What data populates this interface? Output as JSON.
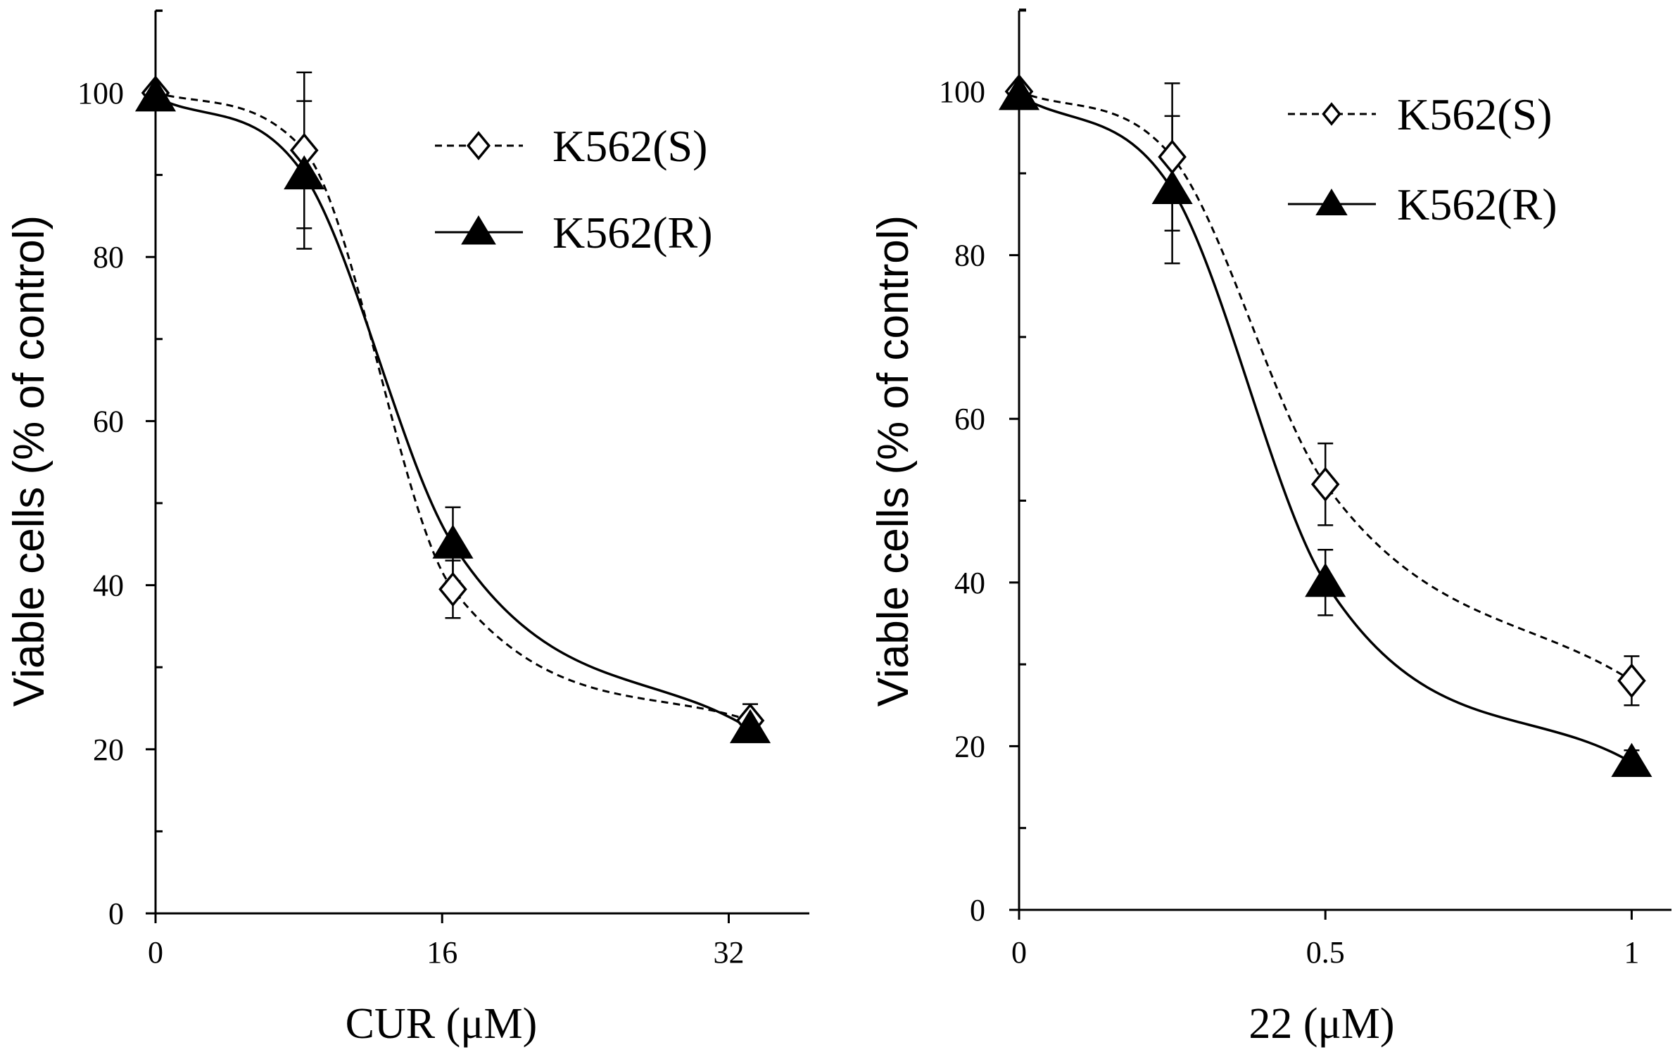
{
  "chart_data": [
    {
      "type": "line",
      "xlabel": "CUR (μM)",
      "ylabel": "Viable cells (% of control)",
      "xlim": [
        0,
        36.5
      ],
      "ylim": [
        0,
        110
      ],
      "xticks": [
        0,
        16,
        32
      ],
      "xtick_labels": [
        "0",
        "16",
        "32"
      ],
      "yticks": [
        0,
        20,
        40,
        60,
        80,
        100
      ],
      "ytick_labels": [
        "0",
        "20",
        "40",
        "60",
        "80",
        "100"
      ],
      "legend": [
        "K562(S)",
        "K562(R)"
      ],
      "legend_position": "top-right",
      "series": [
        {
          "name": "K562(S)",
          "marker": "open-diamond",
          "line": "dashed",
          "x": [
            0,
            8.3,
            16.6,
            33.2
          ],
          "y": [
            100,
            93,
            39.5,
            23.5
          ],
          "error": [
            0,
            9.5,
            3.5,
            2
          ]
        },
        {
          "name": "K562(R)",
          "marker": "filled-triangle",
          "line": "solid",
          "x": [
            0,
            8.3,
            16.6,
            33.2
          ],
          "y": [
            99.5,
            90,
            45,
            22.5
          ],
          "error": [
            0,
            9,
            4.5,
            1.5
          ]
        }
      ]
    },
    {
      "type": "line",
      "xlabel": "22 (μM)",
      "ylabel": "Viable cells  (% of control)",
      "xlim": [
        0,
        1.065
      ],
      "ylim": [
        0,
        110
      ],
      "xticks": [
        0,
        0.5,
        1
      ],
      "xtick_labels": [
        "0",
        "0.5",
        "1"
      ],
      "yticks": [
        0,
        20,
        40,
        60,
        80,
        100
      ],
      "ytick_labels": [
        "0",
        "20",
        "40",
        "60",
        "80",
        "100"
      ],
      "legend": [
        "K562(S)",
        "K562(R)"
      ],
      "legend_position": "top-right",
      "series": [
        {
          "name": "K562(S)",
          "marker": "open-diamond",
          "line": "dashed",
          "x": [
            0,
            0.25,
            0.5,
            1
          ],
          "y": [
            100,
            92,
            52,
            28
          ],
          "error": [
            0,
            9,
            5,
            3
          ]
        },
        {
          "name": "K562(R)",
          "marker": "filled-triangle",
          "line": "solid",
          "x": [
            0,
            0.25,
            0.5,
            1
          ],
          "y": [
            99.5,
            88,
            40,
            18
          ],
          "error": [
            0,
            9,
            4,
            1.5
          ]
        }
      ]
    }
  ]
}
